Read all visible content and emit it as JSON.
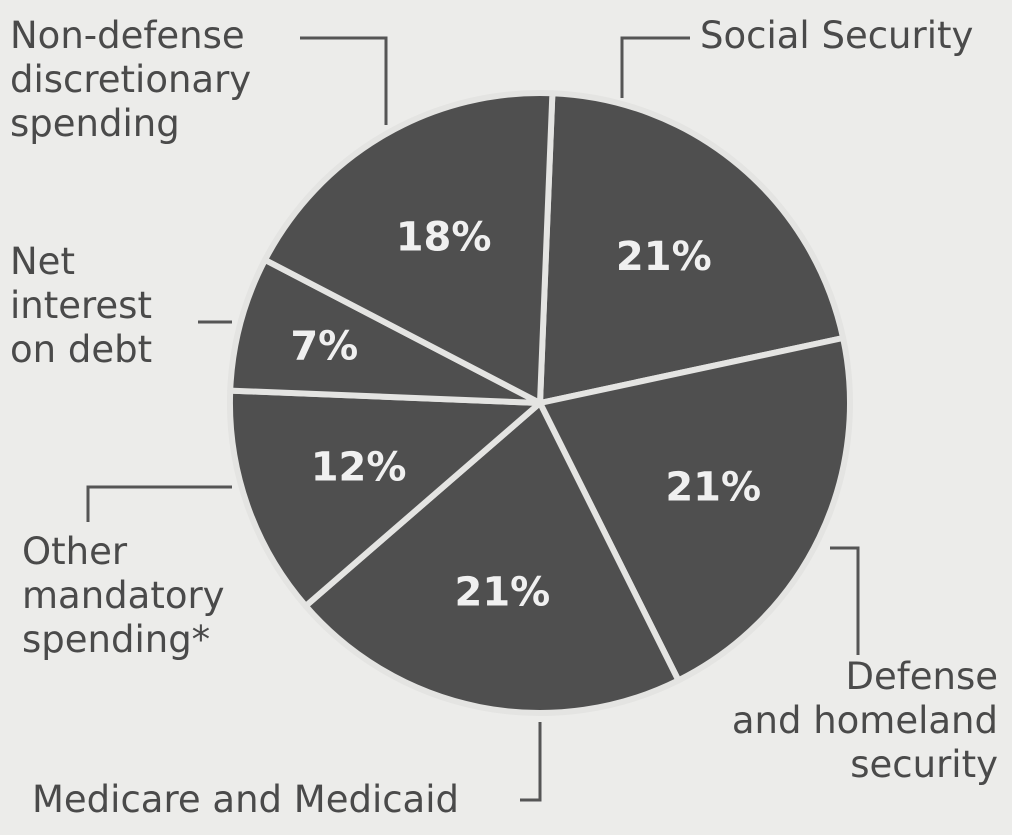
{
  "chart_data": {
    "type": "pie",
    "colors": {
      "slice": "#4f4f4f",
      "divider": "#e4e4e2",
      "text": "#4a4a4a",
      "slice_text": "#f0f0f0"
    },
    "slices": [
      {
        "label": "Social Security",
        "value": 21,
        "value_label": "21%"
      },
      {
        "label": "Defense\nand homeland\nsecurity",
        "value": 21,
        "value_label": "21%"
      },
      {
        "label": "Medicare and Medicaid",
        "value": 21,
        "value_label": "21%"
      },
      {
        "label": "Other\nmandatory\nspending*",
        "value": 12,
        "value_label": "12%"
      },
      {
        "label": "Net\ninterest\non debt",
        "value": 7,
        "value_label": "7%"
      },
      {
        "label": "Non-defense\ndiscretionary\nspending",
        "value": 18,
        "value_label": "18%"
      }
    ]
  }
}
